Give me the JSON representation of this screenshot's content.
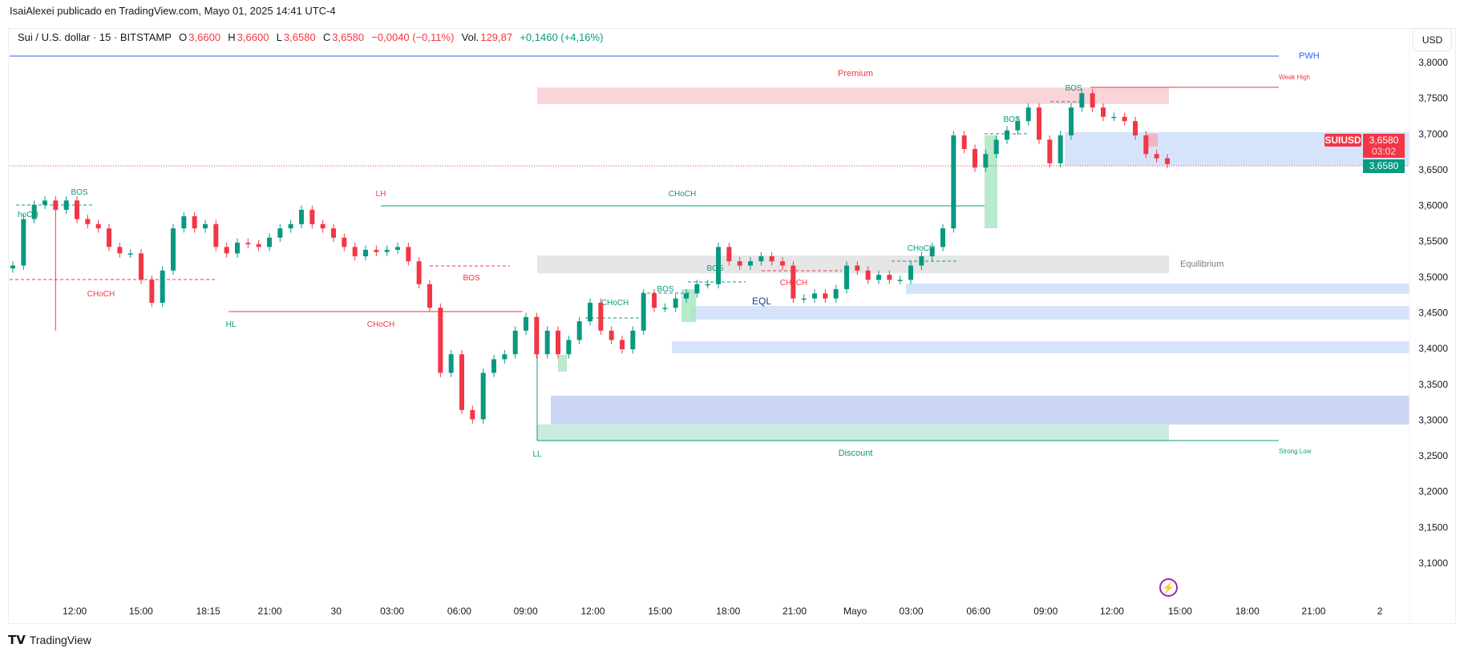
{
  "header": {
    "published": "IsaiAlexei publicado en TradingView.com, Mayo 01, 2025 14:41 UTC-4"
  },
  "legend": {
    "symbol": "Sui / U.S. dollar · 15 · BITSTAMP",
    "o_label": "O",
    "o": "3,6600",
    "h_label": "H",
    "h": "3,6600",
    "l_label": "L",
    "l": "3,6580",
    "c_label": "C",
    "c": "3,6580",
    "change": "−0,0040 (−0,11%)",
    "vol_label": "Vol.",
    "vol": "129,87",
    "vol_change": "+0,1460 (+4,16%)"
  },
  "currency_button": "USD",
  "price_tags": {
    "symbol": "SUIUSD",
    "last": "3,6580",
    "countdown": "03:02",
    "bid": "3,6580"
  },
  "brand": "TradingView",
  "colors": {
    "up": "#089981",
    "down": "#f23645",
    "zone_blue": "#d6e4fb",
    "premium": "#fad4d8",
    "discount": "#c9ecdf",
    "equilibrium": "#e6e6e6",
    "pwh": "#2962ff"
  },
  "chart_data": {
    "type": "candlestick",
    "symbol": "SUIUSD",
    "interval": "15",
    "ylim": [
      3.05,
      3.83
    ],
    "y_ticks": [
      3.8,
      3.75,
      3.7,
      3.65,
      3.6,
      3.55,
      3.5,
      3.45,
      3.4,
      3.35,
      3.3,
      3.25,
      3.2,
      3.15,
      3.1
    ],
    "y_tick_labels": [
      "3,8000",
      "3,7500",
      "3,7000",
      "3,6500",
      "3,6000",
      "3,5500",
      "3,5000",
      "3,4500",
      "3,4000",
      "3,3500",
      "3,3000",
      "3,2500",
      "3,2000",
      "3,1500",
      "3,1000"
    ],
    "x_tick_labels": [
      "12:00",
      "15:00",
      "18:15",
      "21:00",
      "30",
      "03:00",
      "06:00",
      "09:00",
      "12:00",
      "15:00",
      "18:00",
      "21:00",
      "Mayo",
      "03:00",
      "06:00",
      "09:00",
      "12:00",
      "15:00",
      "18:00",
      "21:00",
      "2"
    ],
    "closes": [
      3.516,
      3.581,
      3.601,
      3.607,
      3.594,
      3.607,
      3.581,
      3.574,
      3.568,
      3.542,
      3.533,
      3.533,
      3.496,
      3.464,
      3.509,
      3.568,
      3.585,
      3.568,
      3.574,
      3.542,
      3.533,
      3.548,
      3.546,
      3.542,
      3.555,
      3.568,
      3.574,
      3.594,
      3.574,
      3.568,
      3.555,
      3.542,
      3.529,
      3.538,
      3.535,
      3.538,
      3.542,
      3.522,
      3.49,
      3.457,
      3.366,
      3.392,
      3.314,
      3.301,
      3.366,
      3.385,
      3.392,
      3.425,
      3.444,
      3.392,
      3.425,
      3.392,
      3.412,
      3.438,
      3.464,
      3.425,
      3.412,
      3.399,
      3.425,
      3.477,
      3.457,
      3.457,
      3.47,
      3.477,
      3.49,
      3.49,
      3.542,
      3.522,
      3.516,
      3.522,
      3.529,
      3.522,
      3.516,
      3.47,
      3.47,
      3.477,
      3.47,
      3.483,
      3.516,
      3.509,
      3.496,
      3.503,
      3.496,
      3.496,
      3.516,
      3.529,
      3.542,
      3.568,
      3.698,
      3.679,
      3.653,
      3.672,
      3.692,
      3.705,
      3.718,
      3.737,
      3.692,
      3.659,
      3.698,
      3.737,
      3.757,
      3.737,
      3.724,
      3.724,
      3.718,
      3.698,
      3.672,
      3.666,
      3.658
    ],
    "levels": [
      {
        "label": "PWH",
        "price": 3.808,
        "color": "#2962ff"
      },
      {
        "label": "Weak High",
        "price": 3.766,
        "color": "#f23645"
      },
      {
        "label": "Strong Low",
        "price": 3.272,
        "color": "#089981"
      }
    ],
    "zones": [
      {
        "label": "Premium",
        "top": 3.765,
        "bottom": 3.742,
        "color": "#fad4d8",
        "text_color": "#f23645"
      },
      {
        "label": "Equilibrium",
        "top": 3.53,
        "bottom": 3.505,
        "color": "#e6e6e6",
        "text_color": "#787b86"
      },
      {
        "label": "Discount",
        "top": 3.295,
        "bottom": 3.272,
        "color": "#c9ecdf",
        "text_color": "#089981"
      }
    ],
    "annotations": [
      {
        "text": "BOS",
        "color": "#089981"
      },
      {
        "text": "hoCH",
        "color": "#089981"
      },
      {
        "text": "CHoCH",
        "color": "#f23645"
      },
      {
        "text": "LH",
        "color": "#f23645"
      },
      {
        "text": "CHoCH",
        "color": "#089981"
      },
      {
        "text": "HL",
        "color": "#089981"
      },
      {
        "text": "CHoCH",
        "color": "#f23645"
      },
      {
        "text": "BOS",
        "color": "#f23645"
      },
      {
        "text": "LL",
        "color": "#089981"
      },
      {
        "text": "CHoCH",
        "color": "#089981"
      },
      {
        "text": "BOS",
        "color": "#089981"
      },
      {
        "text": "BOS",
        "color": "#089981"
      },
      {
        "text": "EQL",
        "color": "#1e3a8a"
      },
      {
        "text": "CHoCH",
        "color": "#f23645"
      },
      {
        "text": "CHoCH",
        "color": "#089981"
      },
      {
        "text": "BOS",
        "color": "#089981"
      },
      {
        "text": "BOS",
        "color": "#089981"
      }
    ]
  }
}
